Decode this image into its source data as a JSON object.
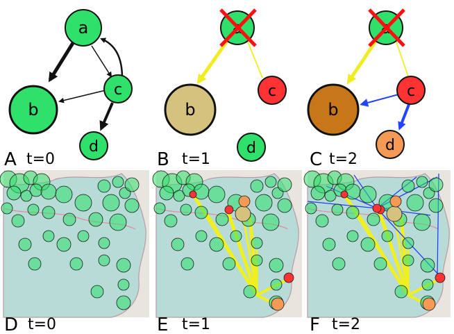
{
  "panels": [
    {
      "letter": "A",
      "time": "t=0"
    },
    {
      "letter": "B",
      "time": "t=1"
    },
    {
      "letter": "C",
      "time": "t=2"
    },
    {
      "letter": "D",
      "time": "t=0"
    },
    {
      "letter": "E",
      "time": "t=1"
    },
    {
      "letter": "F",
      "time": "t=2"
    }
  ],
  "nodes": {
    "a": "a",
    "b": "b",
    "c": "c",
    "d": "d"
  },
  "colors": {
    "healthy": "#2fe06a",
    "failed": "#ff3333",
    "stressed_light": "#d4c27e",
    "stressed_dark": "#c8761a",
    "warning": "#f59a55",
    "flow": "#f0f020",
    "redirect": "#1f3fff",
    "cross": "#ff1010"
  }
}
